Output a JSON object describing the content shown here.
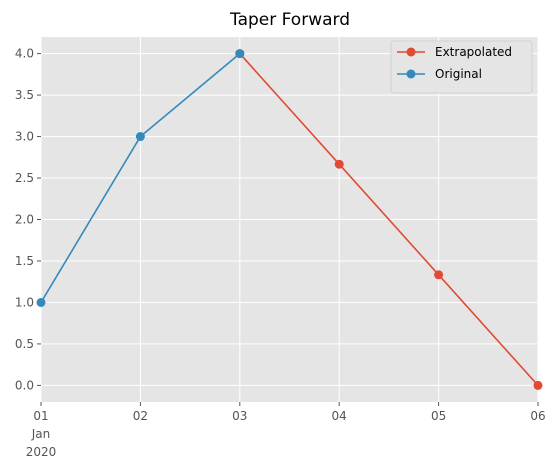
{
  "chart_data": {
    "type": "line",
    "title": "Taper Forward",
    "xlabel": "",
    "ylabel": "",
    "x_ticks": [
      {
        "date": "2020-01-01",
        "label": "01",
        "sub1": "Jan",
        "sub2": "2020"
      },
      {
        "date": "2020-01-02",
        "label": "02",
        "sub1": "",
        "sub2": ""
      },
      {
        "date": "2020-01-03",
        "label": "03",
        "sub1": "",
        "sub2": ""
      },
      {
        "date": "2020-01-04",
        "label": "04",
        "sub1": "",
        "sub2": ""
      },
      {
        "date": "2020-01-05",
        "label": "05",
        "sub1": "",
        "sub2": ""
      },
      {
        "date": "2020-01-06",
        "label": "06",
        "sub1": "",
        "sub2": ""
      }
    ],
    "y_ticks": [
      "0.0",
      "0.5",
      "1.0",
      "1.5",
      "2.0",
      "2.5",
      "3.0",
      "3.5",
      "4.0"
    ],
    "xlim": [
      "2020-01-01",
      "2020-01-06"
    ],
    "ylim": [
      -0.2,
      4.2
    ],
    "grid": true,
    "legend_position": "top-right",
    "series": [
      {
        "name": "Extrapolated",
        "color": "#E24A33",
        "x": [
          "2020-01-03",
          "2020-01-04",
          "2020-01-05",
          "2020-01-06"
        ],
        "y": [
          4.0,
          2.6667,
          1.3333,
          0.0
        ]
      },
      {
        "name": "Original",
        "color": "#348ABD",
        "x": [
          "2020-01-01",
          "2020-01-02",
          "2020-01-03"
        ],
        "y": [
          1.0,
          3.0,
          4.0
        ]
      }
    ]
  }
}
